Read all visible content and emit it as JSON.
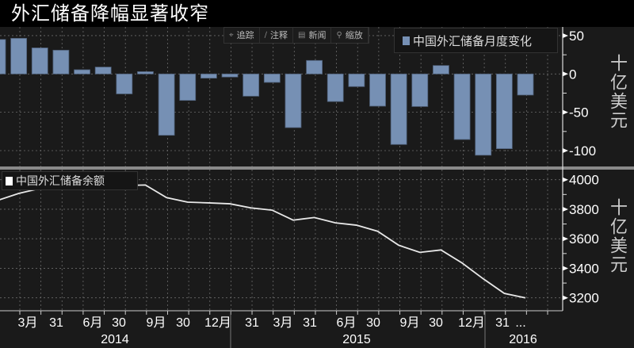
{
  "title": "外汇储备降幅显著收窄",
  "toolbar": [
    {
      "label": "追踪",
      "icon": "crosshair-icon",
      "glyph": "⌖"
    },
    {
      "label": "注释",
      "icon": "pencil-icon",
      "glyph": "∕"
    },
    {
      "label": "新闻",
      "icon": "news-icon",
      "glyph": "▤"
    },
    {
      "label": "缩放",
      "icon": "zoom-icon",
      "glyph": "⚲"
    }
  ],
  "colors": {
    "bar": "#7690b4",
    "line": "#e8e8e8",
    "background": "#1a1a1a",
    "grid": "#6a6a6a"
  },
  "chart_data": [
    {
      "type": "bar",
      "title": "中国外汇储备月度变化",
      "legend": "中国外汇储备月度变化",
      "ylabel": "十亿美元",
      "ylim": [
        -115,
        65
      ],
      "yticks": [
        50,
        0,
        -50,
        -100
      ],
      "ytick_labels": [
        "50",
        "0",
        "-50",
        "-100"
      ],
      "categories": [
        "2014-01",
        "2014-02",
        "2014-03",
        "2014-04",
        "2014-05",
        "2014-06",
        "2014-07",
        "2014-08",
        "2014-09",
        "2014-10",
        "2014-11",
        "2014-12",
        "2015-01",
        "2015-02",
        "2015-03",
        "2015-04",
        "2015-05",
        "2015-06",
        "2015-07",
        "2015-08",
        "2015-09",
        "2015-10",
        "2015-11",
        "2015-12",
        "2016-01",
        "2016-02"
      ],
      "values": [
        45,
        46.5,
        34,
        31,
        5.5,
        9,
        -26,
        3,
        -80,
        -34.5,
        -5.5,
        -4,
        -29,
        -11,
        -70,
        17.6,
        -36,
        -16.5,
        -42,
        -92,
        -42.5,
        11,
        -85.5,
        -106,
        -97.5,
        -27.5
      ]
    },
    {
      "type": "line",
      "title": "中国外汇储备余额",
      "legend": "中国外汇储备余额",
      "ylabel": "十亿美元",
      "ylim": [
        3120,
        4060
      ],
      "yticks": [
        4000,
        3800,
        3600,
        3400,
        3200
      ],
      "ytick_labels": [
        "4000",
        "3800",
        "3600",
        "3400",
        "3200"
      ],
      "categories": [
        "2014-01",
        "2014-02",
        "2014-03",
        "2014-04",
        "2014-05",
        "2014-06",
        "2014-07",
        "2014-08",
        "2014-09",
        "2014-10",
        "2014-11",
        "2014-12",
        "2015-01",
        "2015-02",
        "2015-03",
        "2015-04",
        "2015-05",
        "2015-06",
        "2015-07",
        "2015-08",
        "2015-09",
        "2015-10",
        "2015-11",
        "2015-12",
        "2016-01",
        "2016-02"
      ],
      "values": [
        3860,
        3907,
        3941,
        3972,
        3978,
        3987,
        3961,
        3964,
        3879,
        3848,
        3843,
        3837,
        3809,
        3794,
        3726,
        3744,
        3708,
        3692,
        3651,
        3556,
        3508,
        3524,
        3436,
        3329,
        3230,
        3200
      ]
    }
  ],
  "xaxis": {
    "tick_labels": [
      "3月",
      "31",
      "6月",
      "30",
      "9月",
      "30",
      "12月",
      "31",
      "3月",
      "31",
      "6月",
      "30",
      "9月",
      "30",
      "12月",
      "31",
      "..."
    ],
    "years": [
      "2014",
      "2015",
      "2016"
    ]
  }
}
